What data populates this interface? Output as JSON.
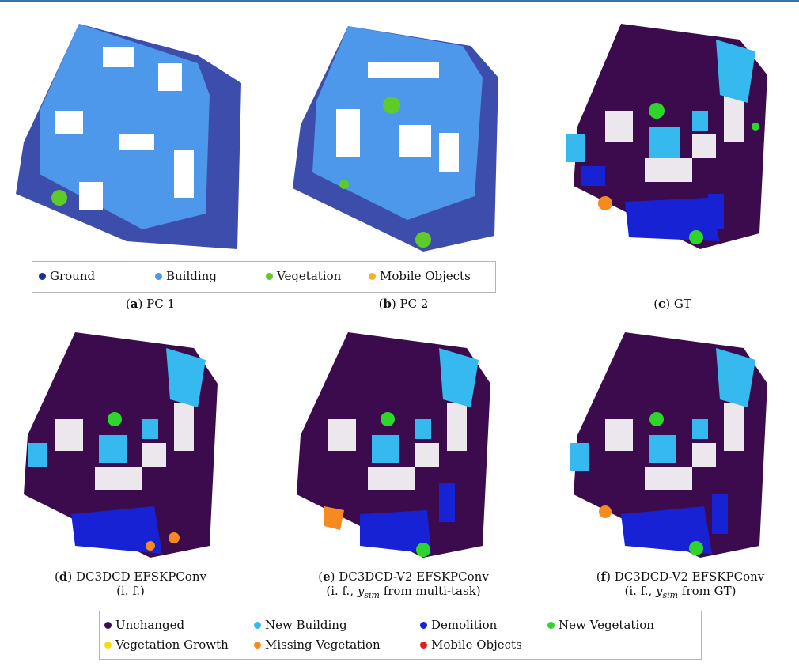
{
  "legend_top": {
    "items": [
      {
        "label": "Ground",
        "color": "#1b2e9e"
      },
      {
        "label": "Building",
        "color": "#4d98ea"
      },
      {
        "label": "Vegetation",
        "color": "#5ecb2a"
      },
      {
        "label": "Mobile Objects",
        "color": "#f6b21c"
      }
    ]
  },
  "legend_bottom": {
    "items": [
      {
        "label": "Unchanged",
        "color": "#3b0b4d"
      },
      {
        "label": "New Building",
        "color": "#35b9ef"
      },
      {
        "label": "Demolition",
        "color": "#1722d4"
      },
      {
        "label": "New Vegetation",
        "color": "#2ed62c"
      },
      {
        "label": "Vegetation Growth",
        "color": "#f0de10"
      },
      {
        "label": "Missing Vegetation",
        "color": "#f58a1f"
      },
      {
        "label": "Mobile Objects",
        "color": "#e81a1a"
      }
    ]
  },
  "captions": {
    "a": {
      "tag": "a",
      "text": " PC 1"
    },
    "b": {
      "tag": "b",
      "text": " PC 2"
    },
    "c": {
      "tag": "c",
      "text": " GT"
    },
    "d": {
      "tag": "d",
      "text": " DC3DCD EFSKPConv",
      "line2": "(i. f.)"
    },
    "e": {
      "tag": "e",
      "text": " DC3DCD-V2 EFSKPConv",
      "line2_pre": "(i. f., ",
      "math": "y",
      "sub": "sim",
      "line2_post": " from multi-task)"
    },
    "f": {
      "tag": "f",
      "text": " DC3DCD-V2 EFSKPConv",
      "line2_pre": "(i. f., ",
      "math": "y",
      "sub": "sim",
      "line2_post": " from GT)"
    }
  }
}
